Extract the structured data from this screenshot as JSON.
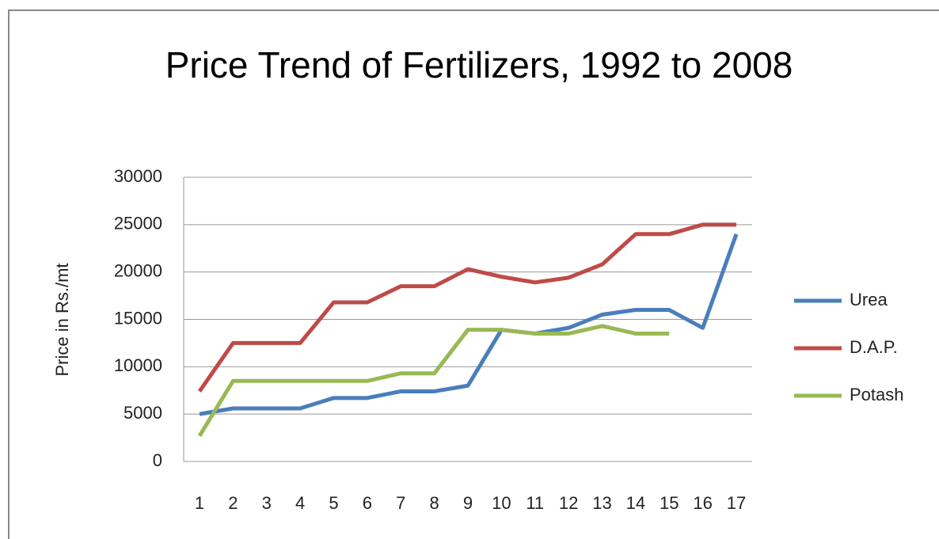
{
  "chart_data": {
    "type": "line",
    "title": "Price Trend of Fertilizers, 1992 to 2008",
    "y_label": "Price in Rs./mt",
    "categories": [
      "1",
      "2",
      "3",
      "4",
      "5",
      "6",
      "7",
      "8",
      "9",
      "10",
      "11",
      "12",
      "13",
      "14",
      "15",
      "16",
      "17"
    ],
    "series": [
      {
        "name": "Urea",
        "color": "#4a7ebb",
        "values": [
          5000,
          5600,
          5600,
          5600,
          6700,
          6700,
          7400,
          7400,
          8000,
          13900,
          13500,
          14100,
          15500,
          16000,
          16000,
          14100,
          24000
        ]
      },
      {
        "name": "D.A.P.",
        "color": "#be4b48",
        "values": [
          7400,
          12500,
          12500,
          12500,
          16800,
          16800,
          18500,
          18500,
          20300,
          19500,
          18900,
          19400,
          20800,
          24000,
          24000,
          25000,
          25000
        ]
      },
      {
        "name": "Potash",
        "color": "#98b954",
        "values": [
          2700,
          8500,
          8500,
          8500,
          8500,
          8500,
          9300,
          9300,
          13900,
          13900,
          13500,
          13500,
          14300,
          13500,
          13500,
          null,
          null
        ]
      }
    ],
    "ylim": [
      0,
      30000
    ],
    "yticks": [
      0,
      5000,
      10000,
      15000,
      20000,
      25000,
      30000
    ],
    "grid": true,
    "legend": "right"
  }
}
